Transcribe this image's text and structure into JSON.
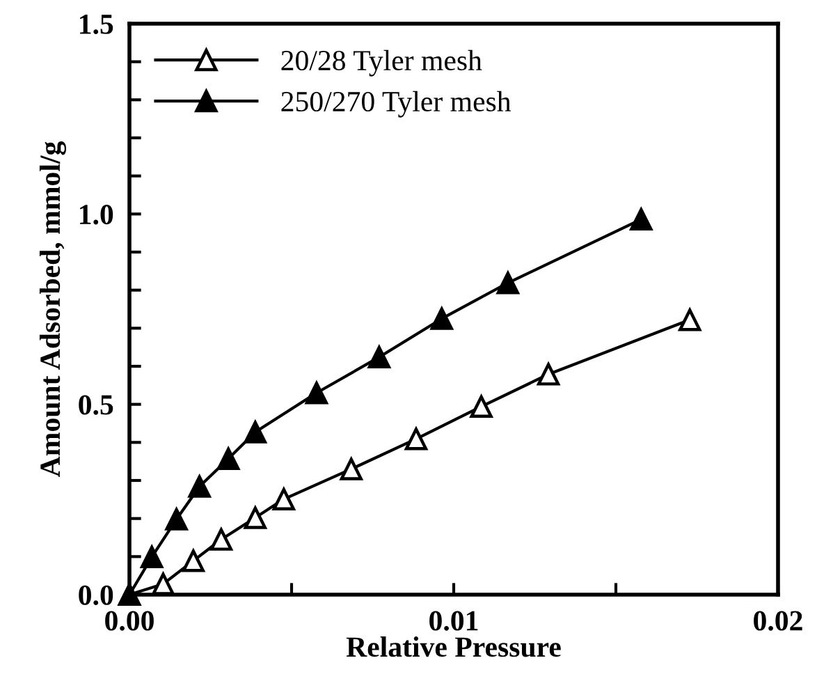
{
  "chart_data": {
    "type": "line",
    "xlabel": "Relative Pressure",
    "ylabel": "Amount Adsorbed, mmol/g",
    "xlim": [
      0,
      0.02
    ],
    "ylim": [
      0,
      1.5
    ],
    "xticks": [
      {
        "value": 0,
        "label": "0.00"
      },
      {
        "value": 0.005,
        "label": null
      },
      {
        "value": 0.01,
        "label": "0.01"
      },
      {
        "value": 0.015,
        "label": null
      },
      {
        "value": 0.02,
        "label": "0.02"
      }
    ],
    "yticks": [
      {
        "value": 0,
        "label": "0.0"
      },
      {
        "value": 0.1,
        "label": null
      },
      {
        "value": 0.2,
        "label": null
      },
      {
        "value": 0.3,
        "label": null
      },
      {
        "value": 0.4,
        "label": null
      },
      {
        "value": 0.5,
        "label": "0.5"
      },
      {
        "value": 0.6,
        "label": null
      },
      {
        "value": 0.7,
        "label": null
      },
      {
        "value": 0.8,
        "label": null
      },
      {
        "value": 0.9,
        "label": null
      },
      {
        "value": 1.0,
        "label": "1.0"
      },
      {
        "value": 1.1,
        "label": null
      },
      {
        "value": 1.2,
        "label": null
      },
      {
        "value": 1.3,
        "label": null
      },
      {
        "value": 1.4,
        "label": null
      },
      {
        "value": 1.5,
        "label": "1.5"
      }
    ],
    "grid": false,
    "legend": "top left",
    "marker": "triangle",
    "line_style": "solid",
    "series": [
      {
        "name": "20/28 Tyler mesh",
        "color": "#ffffff",
        "x": [
          0,
          0.00104,
          0.00197,
          0.00283,
          0.00388,
          0.00476,
          0.00684,
          0.00884,
          0.01085,
          0.01292,
          0.01728
        ],
        "values": [
          0,
          0.028,
          0.089,
          0.145,
          0.202,
          0.251,
          0.33,
          0.409,
          0.494,
          0.579,
          0.722
        ]
      },
      {
        "name": "250/270 Tyler mesh",
        "color": "#000000",
        "x": [
          0,
          0.00069,
          0.00145,
          0.00216,
          0.00305,
          0.00388,
          0.00577,
          0.0077,
          0.00963,
          0.01167,
          0.01578
        ],
        "values": [
          0,
          0.099,
          0.198,
          0.284,
          0.357,
          0.427,
          0.53,
          0.624,
          0.725,
          0.819,
          0.986
        ]
      }
    ]
  }
}
